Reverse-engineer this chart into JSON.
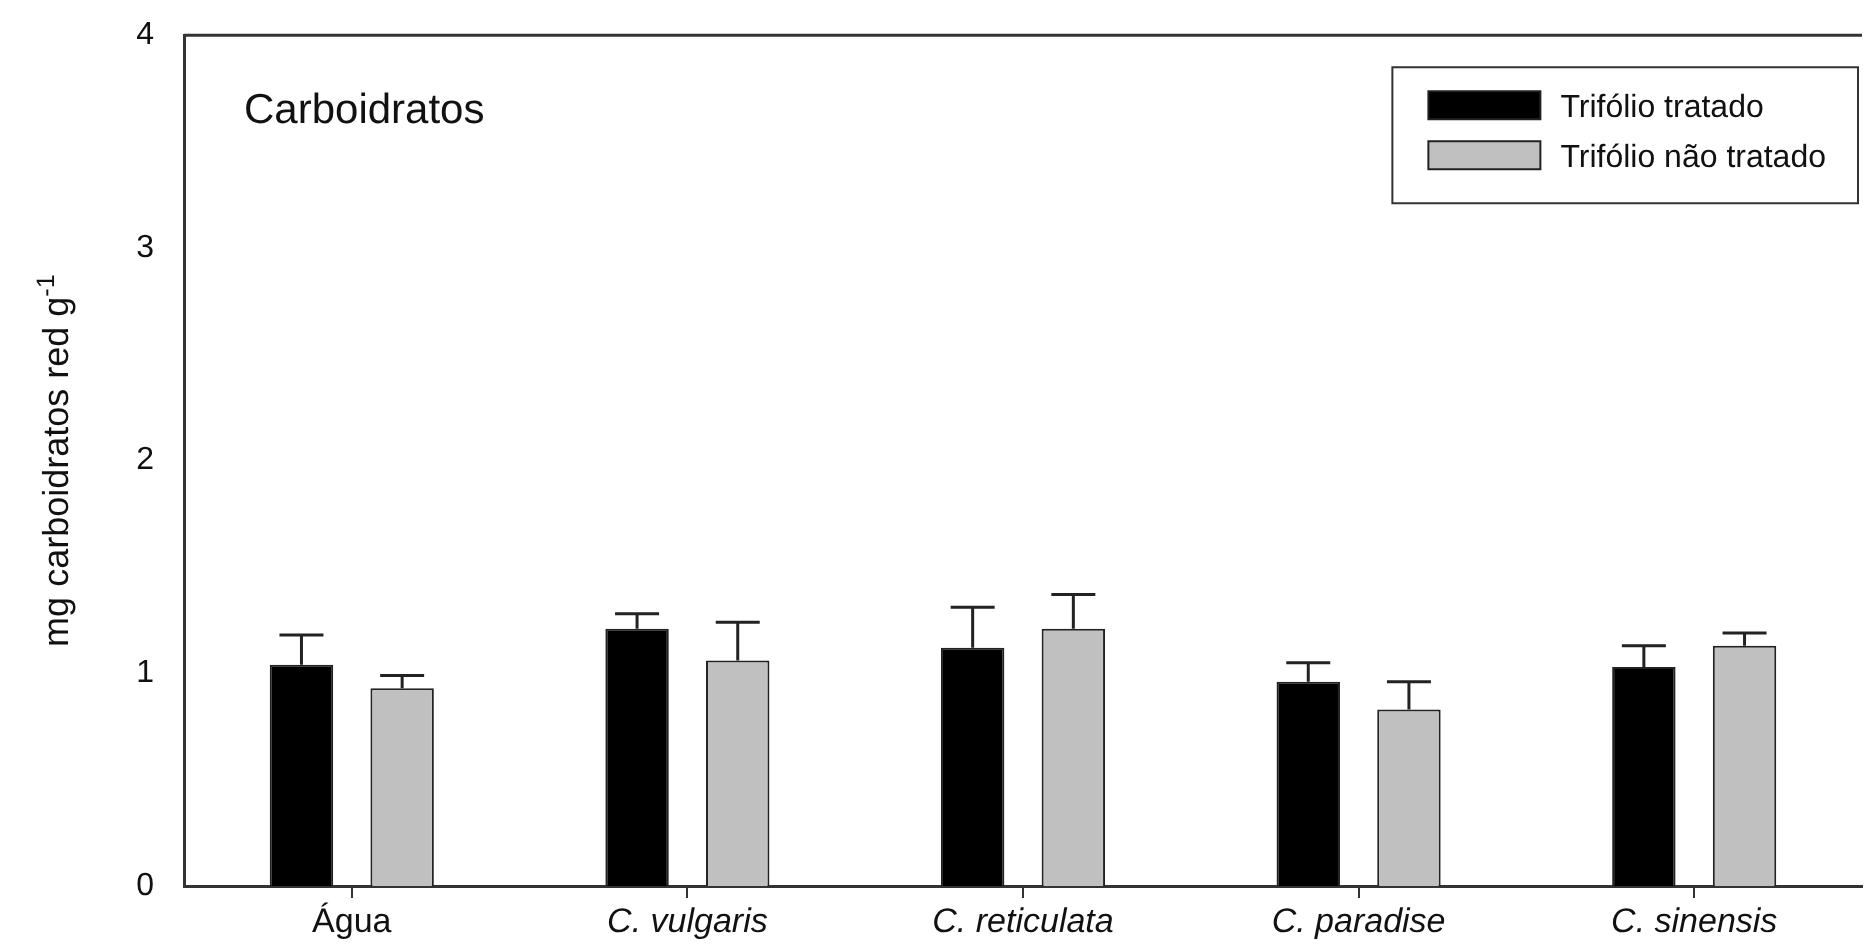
{
  "chart_data": {
    "type": "bar",
    "title": "Carboidratos",
    "ylabel": "mg carboidratos red g$^{-1}$",
    "categories": [
      "Água",
      "C. vulgaris",
      "C. reticulata",
      "C. paradise",
      "C. sinensis"
    ],
    "series": [
      {
        "name": "Trifólio tratado",
        "color": "#000000",
        "values": [
          1.04,
          1.21,
          1.12,
          0.96,
          1.03
        ],
        "errors": [
          [
            1.04,
            1.18
          ],
          [
            1.21,
            1.28
          ],
          [
            1.12,
            1.31
          ],
          [
            0.96,
            1.05
          ],
          [
            1.03,
            1.13
          ]
        ]
      },
      {
        "name": "Trifólio não tratado",
        "color": "#c0c0c0",
        "values": [
          0.93,
          1.06,
          1.21,
          0.83,
          1.13
        ],
        "errors": [
          [
            0.93,
            0.99
          ],
          [
            1.06,
            1.24
          ],
          [
            1.21,
            1.37
          ],
          [
            0.83,
            0.96
          ],
          [
            1.13,
            1.19
          ]
        ]
      }
    ],
    "ylim": [
      0,
      4
    ],
    "yticks": [
      0,
      1,
      2,
      3,
      4
    ],
    "grid": false,
    "legend": "top right"
  }
}
